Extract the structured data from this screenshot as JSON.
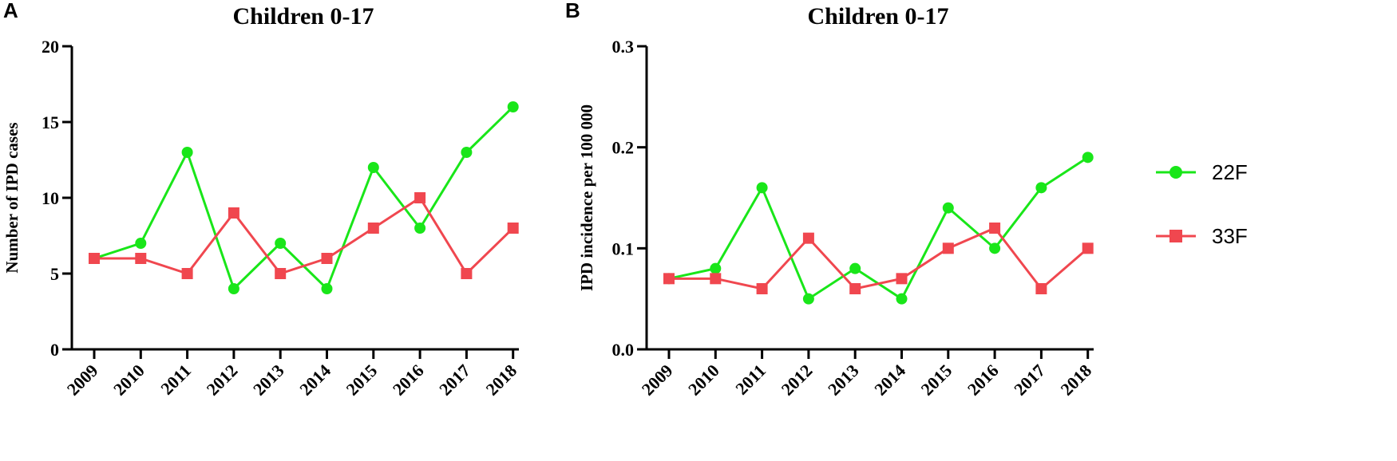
{
  "figure": {
    "legend": [
      {
        "name": "22F",
        "color": "#19e619",
        "marker": "circle"
      },
      {
        "name": "33F",
        "color": "#f0474f",
        "marker": "square"
      }
    ]
  },
  "chart_data": [
    {
      "type": "line",
      "panel": "A",
      "title": "Children 0-17",
      "xlabel": "",
      "ylabel": "Number of IPD cases",
      "categories": [
        "2009",
        "2010",
        "2011",
        "2012",
        "2013",
        "2014",
        "2015",
        "2016",
        "2017",
        "2018"
      ],
      "ylim": [
        0,
        20
      ],
      "yticks": [
        0,
        5,
        10,
        15,
        20
      ],
      "ytick_labels": [
        "0",
        "5",
        "10",
        "15",
        "20"
      ],
      "series": [
        {
          "name": "22F",
          "color": "#19e619",
          "marker": "circle",
          "values": [
            6,
            7,
            13,
            4,
            7,
            4,
            12,
            8,
            13,
            16
          ]
        },
        {
          "name": "33F",
          "color": "#f0474f",
          "marker": "square",
          "values": [
            6,
            6,
            5,
            9,
            5,
            6,
            8,
            10,
            5,
            8
          ]
        }
      ]
    },
    {
      "type": "line",
      "panel": "B",
      "title": "Children 0-17",
      "xlabel": "",
      "ylabel": "IPD incidence per 100 000",
      "categories": [
        "2009",
        "2010",
        "2011",
        "2012",
        "2013",
        "2014",
        "2015",
        "2016",
        "2017",
        "2018"
      ],
      "ylim": [
        0,
        0.3
      ],
      "yticks": [
        0,
        0.1,
        0.2,
        0.3
      ],
      "ytick_labels": [
        "0.0",
        "0.1",
        "0.2",
        "0.3"
      ],
      "series": [
        {
          "name": "22F",
          "color": "#19e619",
          "marker": "circle",
          "values": [
            0.07,
            0.08,
            0.16,
            0.05,
            0.08,
            0.05,
            0.14,
            0.1,
            0.16,
            0.19
          ]
        },
        {
          "name": "33F",
          "color": "#f0474f",
          "marker": "square",
          "values": [
            0.07,
            0.07,
            0.06,
            0.11,
            0.06,
            0.07,
            0.1,
            0.12,
            0.06,
            0.1
          ]
        }
      ]
    }
  ]
}
